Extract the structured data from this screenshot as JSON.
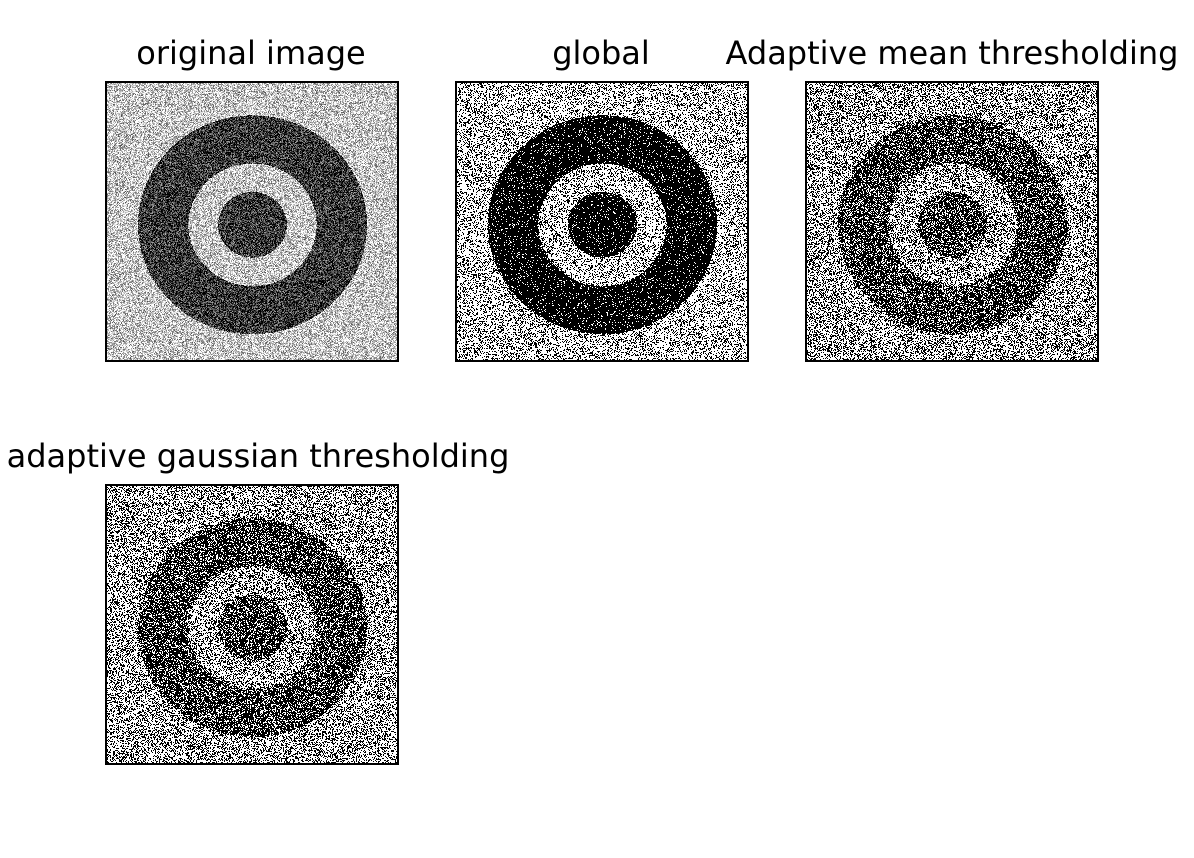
{
  "figure": {
    "panels": [
      {
        "id": "original",
        "title": "original image",
        "style": "gray"
      },
      {
        "id": "global",
        "title": "global",
        "style": "binary-global"
      },
      {
        "id": "adaptive_mean",
        "title": "Adaptive mean thresholding",
        "style": "binary-adaptive"
      },
      {
        "id": "adaptive_gaussian",
        "title": "adaptive gaussian thresholding",
        "style": "binary-adaptive"
      }
    ]
  }
}
